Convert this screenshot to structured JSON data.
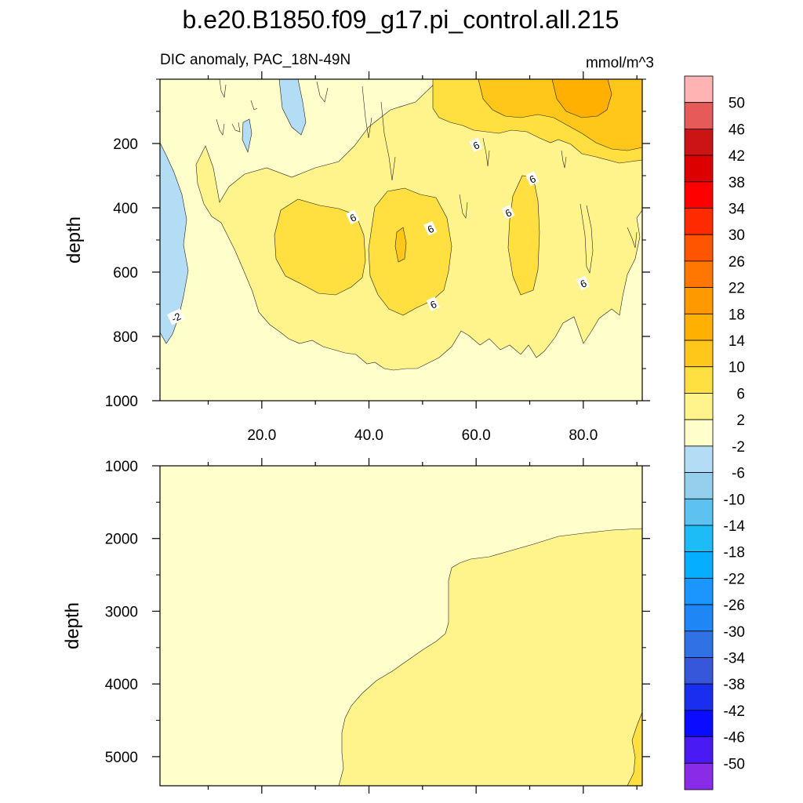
{
  "chart_data": {
    "type": "contour",
    "title": "b.e20.B1850.f09_g17.pi_control.all.215",
    "subtitle_left": "DIC anomaly, PAC_18N-49N",
    "units": "mmol/m^3",
    "ylabel": "depth",
    "x_ticks": [
      "20.0",
      "40.0",
      "60.0",
      "80.0"
    ],
    "x_tick_values": [
      20,
      40,
      60,
      80
    ],
    "xlim": [
      1,
      91
    ],
    "panels": [
      {
        "name": "upper",
        "ylim": [
          0,
          1000
        ],
        "y_reversed": true,
        "y_ticks": [
          "200",
          "400",
          "600",
          "800",
          "1000"
        ],
        "y_tick_values": [
          200,
          400,
          600,
          800,
          1000
        ],
        "contour_labels": [
          {
            "text": "6",
            "x": 37,
            "y": 430
          },
          {
            "text": "6",
            "x": 51.5,
            "y": 465
          },
          {
            "text": "6",
            "x": 60,
            "y": 205
          },
          {
            "text": "6",
            "x": 66,
            "y": 415
          },
          {
            "text": "6",
            "x": 70.5,
            "y": 310
          },
          {
            "text": "6",
            "x": 80,
            "y": 635
          },
          {
            "text": "6",
            "x": 52,
            "y": 700
          },
          {
            "text": "-2",
            "x": 4,
            "y": 740
          }
        ]
      },
      {
        "name": "lower",
        "ylim": [
          1000,
          5400
        ],
        "y_reversed": true,
        "y_ticks": [
          "1000",
          "2000",
          "3000",
          "4000",
          "5000"
        ],
        "y_tick_values": [
          1000,
          2000,
          3000,
          4000,
          5000
        ]
      }
    ],
    "colorbar": {
      "labels": [
        "50",
        "46",
        "42",
        "38",
        "34",
        "30",
        "26",
        "22",
        "18",
        "14",
        "10",
        "6",
        "2",
        "-2",
        "-6",
        "-10",
        "-14",
        "-18",
        "-22",
        "-26",
        "-30",
        "-34",
        "-38",
        "-42",
        "-46",
        "-50"
      ],
      "colors": [
        "#FFB3B3",
        "#E65A5A",
        "#CC1414",
        "#DD0000",
        "#FF0000",
        "#FF2A00",
        "#FF5500",
        "#FF7700",
        "#FF9900",
        "#FFB000",
        "#FFC71A",
        "#FFE040",
        "#FFF38C",
        "#FFFFCC",
        "#B3DDF5",
        "#94CFEE",
        "#5DC2F0",
        "#1EBCF7",
        "#05AEFF",
        "#1C96FF",
        "#1E86F5",
        "#3071E6",
        "#3757DB",
        "#1A2EF0",
        "#0B0BFF",
        "#4A1AF5",
        "#8A2BE8"
      ]
    }
  }
}
